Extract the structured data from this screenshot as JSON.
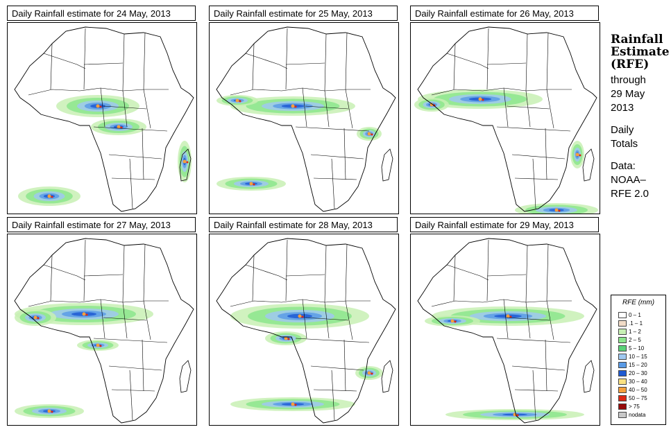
{
  "panels": [
    {
      "title": "Daily Rainfall estimate for  24 May, 2013"
    },
    {
      "title": "Daily Rainfall estimate for  25 May, 2013"
    },
    {
      "title": "Daily Rainfall estimate for  26 May, 2013"
    },
    {
      "title": "Daily Rainfall estimate for  27 May, 2013"
    },
    {
      "title": "Daily Rainfall estimate for  28 May, 2013"
    },
    {
      "title": "Daily Rainfall estimate for  29 May, 2013"
    }
  ],
  "sidebar": {
    "title_line1": "Rainfall",
    "title_line2": "Estimate",
    "title_line3": "(RFE)",
    "through_label": "through",
    "date_line1": "29 May",
    "date_line2": "2013",
    "totals_line1": "Daily",
    "totals_line2": "Totals",
    "data_label": "Data:",
    "source_line1": "NOAA–",
    "source_line2": "RFE 2.0"
  },
  "legend": {
    "title": "RFE (mm)",
    "items": [
      {
        "label": "0 – 1",
        "color": "#ffffff"
      },
      {
        "label": ".1 – 1",
        "color": "#f2dcc8"
      },
      {
        "label": "1 – 2",
        "color": "#c8f0b4"
      },
      {
        "label": "2 – 5",
        "color": "#8ce68c"
      },
      {
        "label": "5 – 10",
        "color": "#5ad278"
      },
      {
        "label": "10 – 15",
        "color": "#a0c8f0"
      },
      {
        "label": "15 – 20",
        "color": "#5a9be6"
      },
      {
        "label": "20 – 30",
        "color": "#1e5ad2"
      },
      {
        "label": "30 – 40",
        "color": "#fae182"
      },
      {
        "label": "40 – 50",
        "color": "#f5a03c"
      },
      {
        "label": "50 – 75",
        "color": "#dc2814"
      },
      {
        "label": "> 75",
        "color": "#960a0a"
      },
      {
        "label": "nodata",
        "color": "#c8c8c8"
      }
    ]
  }
}
